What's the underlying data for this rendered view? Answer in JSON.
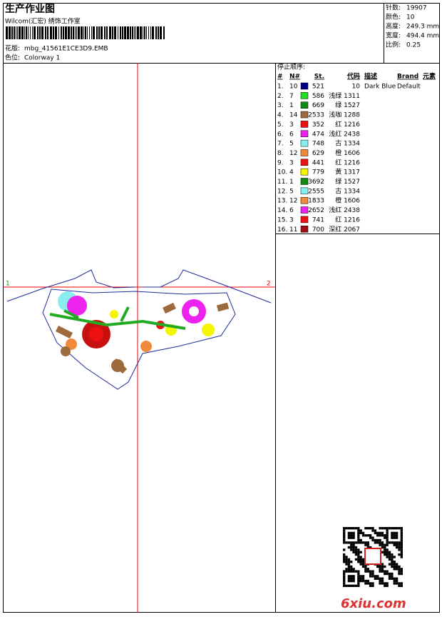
{
  "header": {
    "title": "生产作业图",
    "studio": "Wilcom(汇宏) 绣饰工作室",
    "design_label": "花版:",
    "design_file": "mbg_41561E1CE3D9.EMB",
    "colorway_label": "色位:",
    "colorway": "Colorway 1"
  },
  "info": [
    {
      "label": "针数:",
      "value": "19907"
    },
    {
      "label": "颜色:",
      "value": "10"
    },
    {
      "label": "高度:",
      "value": "249.3 mm"
    },
    {
      "label": "宽度:",
      "value": "494.4 mm"
    },
    {
      "label": "比例:",
      "value": "0.25"
    }
  ],
  "table": {
    "title": "停止顺序:",
    "columns": [
      "#",
      "N#",
      "St.",
      "代码",
      "描述",
      "Brand",
      "元素"
    ],
    "rows": [
      {
        "index": "1.",
        "needle": "10",
        "stitches": "521",
        "code": "10",
        "description": "Dark Blue",
        "brand": "Default",
        "color": "#00008b"
      },
      {
        "index": "2.",
        "needle": "7",
        "stitches": "586",
        "code": "浅绿 1311",
        "color": "#22dd22"
      },
      {
        "index": "3.",
        "needle": "1",
        "stitches": "669",
        "code": "绿 1527",
        "color": "#138a13"
      },
      {
        "index": "4.",
        "needle": "14",
        "stitches": "2533",
        "code": "浅咖 1288",
        "color": "#9c6a3c"
      },
      {
        "index": "5.",
        "needle": "3",
        "stitches": "352",
        "code": "红 1216",
        "color": "#ee1111"
      },
      {
        "index": "6.",
        "needle": "6",
        "stitches": "474",
        "code": "浅红 2438",
        "color": "#ee22ee"
      },
      {
        "index": "7.",
        "needle": "5",
        "stitches": "748",
        "code": "古 1334",
        "color": "#88eeee"
      },
      {
        "index": "8.",
        "needle": "12",
        "stitches": "629",
        "code": "橙 1606",
        "color": "#f08a3a"
      },
      {
        "index": "9.",
        "needle": "3",
        "stitches": "441",
        "code": "红 1216",
        "color": "#ee1111"
      },
      {
        "index": "10.",
        "needle": "4",
        "stitches": "779",
        "code": "黄 1317",
        "color": "#f5f500"
      },
      {
        "index": "11.",
        "needle": "1",
        "stitches": "3692",
        "code": "绿 1527",
        "color": "#138a13"
      },
      {
        "index": "12.",
        "needle": "5",
        "stitches": "2555",
        "code": "古 1334",
        "color": "#88eeee"
      },
      {
        "index": "13.",
        "needle": "12",
        "stitches": "1833",
        "code": "橙 1606",
        "color": "#f08a3a"
      },
      {
        "index": "14.",
        "needle": "6",
        "stitches": "2652",
        "code": "浅红 2438",
        "color": "#ee22ee"
      },
      {
        "index": "15.",
        "needle": "3",
        "stitches": "741",
        "code": "红 1216",
        "color": "#ee1111"
      },
      {
        "index": "16.",
        "needle": "11",
        "stitches": "700",
        "code": "深红 2067",
        "color": "#a01010"
      }
    ]
  },
  "canvas": {
    "markers": [
      "1",
      "2"
    ]
  },
  "watermark": "6xiu.com"
}
